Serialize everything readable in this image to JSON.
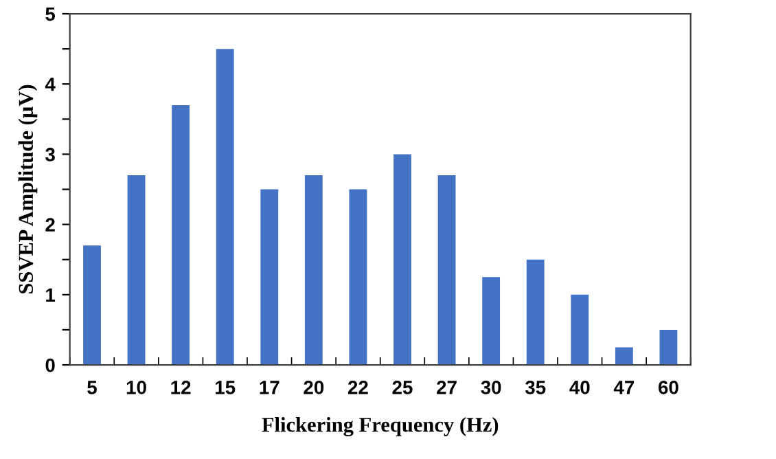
{
  "chart_data": {
    "type": "bar",
    "xlabel": "Flickering Frequency (Hz)",
    "ylabel": "SSVEP Amplitude (µV)",
    "categories": [
      "5",
      "10",
      "12",
      "15",
      "17",
      "20",
      "22",
      "25",
      "27",
      "30",
      "35",
      "40",
      "47",
      "60"
    ],
    "values": [
      1.7,
      2.7,
      3.7,
      4.5,
      2.5,
      2.7,
      2.5,
      3.0,
      2.7,
      1.25,
      1.5,
      1.0,
      0.25,
      0.5
    ],
    "color": "#4472c4",
    "ylim": [
      0,
      5
    ],
    "yticks": [
      0,
      {
        "value": 0.5,
        "label": null
      },
      1,
      {
        "value": 1.5,
        "label": null
      },
      2,
      {
        "value": 2.5,
        "label": null
      },
      3,
      {
        "value": 3.5,
        "label": null
      },
      4,
      {
        "value": 4.5,
        "label": null
      },
      5
    ],
    "grid": false,
    "legend": false
  }
}
